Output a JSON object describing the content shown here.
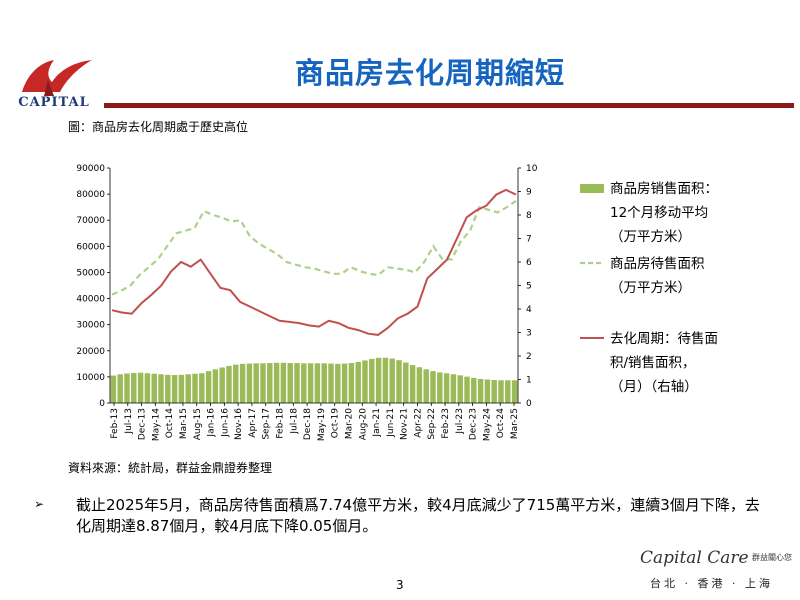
{
  "header": {
    "logo_text": "CAPITAL",
    "title": "商品房去化周期縮短"
  },
  "figure_caption": "圖：商品房去化周期處于歷史高位",
  "source_note": "資料來源：統計局，群益金鼎證券整理",
  "bullet": {
    "marker": "➢",
    "text": "截止2025年5月，商品房待售面積爲7.74億平方米，較4月底減少了715萬平方米，連續3個月下降，去化周期達8.87個月，較4月底下降0.05個月。"
  },
  "footer": {
    "page_number": "3",
    "brand": "Capital Care",
    "brand_cn": "群益關心您",
    "cities": "台北 · 香港 · 上海"
  },
  "colors": {
    "title": "#1565c0",
    "rule": "#8b1a1a",
    "sales_bars": "#9bbb59",
    "inventory_line": "#aed08a",
    "cycle_line": "#c0504d"
  },
  "chart_data": {
    "type": "bar",
    "x_tick_labels": [
      "Feb-13",
      "Jul-13",
      "Dec-13",
      "May-14",
      "Oct-14",
      "Mar-15",
      "Aug-15",
      "Jan-16",
      "Jun-16",
      "Nov-16",
      "Apr-17",
      "Sep-17",
      "Feb-18",
      "Jul-18",
      "Dec-18",
      "May-19",
      "Oct-19",
      "Mar-20",
      "Aug-20",
      "Jan-21",
      "Jun-21",
      "Nov-21",
      "Apr-22",
      "Sep-22",
      "Feb-23",
      "Jul-23",
      "Dec-23",
      "May-24",
      "Oct-24",
      "Mar-25"
    ],
    "y_left": {
      "ticks": [
        "0",
        "10000",
        "20000",
        "30000",
        "40000",
        "50000",
        "60000",
        "70000",
        "80000",
        "90000"
      ],
      "lim": [
        0,
        90000
      ]
    },
    "y_right": {
      "ticks": [
        "0",
        "1",
        "2",
        "3",
        "4",
        "5",
        "6",
        "7",
        "8",
        "9",
        "10"
      ],
      "lim": [
        0,
        10
      ]
    },
    "grid": false,
    "legend_position": "right",
    "months": "Feb-13 to May-25, monthly",
    "series": [
      {
        "name": "商品房销售面积：12个月移动平均（万平方米）",
        "legend_lines": [
          "商品房销售面积：",
          "12个月移动平均",
          "（万平方米）"
        ],
        "kind": "bar",
        "axis": "left",
        "quarterly_values": [
          10500,
          11000,
          11300,
          11500,
          11600,
          11400,
          11200,
          11000,
          10800,
          10700,
          10800,
          11000,
          11200,
          11400,
          12200,
          12900,
          13600,
          14200,
          14700,
          15000,
          15100,
          15200,
          15200,
          15300,
          15400,
          15400,
          15300,
          15300,
          15200,
          15200,
          15200,
          15200,
          15100,
          15000,
          15100,
          15300,
          15700,
          16300,
          16900,
          17300,
          17300,
          17000,
          16400,
          15500,
          14500,
          13700,
          12900,
          12200,
          11700,
          11400,
          11000,
          10600,
          10100,
          9600,
          9200,
          9000,
          8800,
          8700,
          8700,
          8700
        ]
      },
      {
        "name": "商品房待售面积（万平方米）",
        "legend_lines": [
          "商品房待售面积",
          "（万平方米）"
        ],
        "kind": "line",
        "style": "dashed",
        "axis": "left",
        "quarterly_values": [
          41500,
          43000,
          45000,
          49000,
          52000,
          55000,
          60000,
          65000,
          66000,
          67000,
          73500,
          72000,
          71000,
          69500,
          70000,
          64000,
          61000,
          59000,
          57000,
          54000,
          53000,
          52000,
          51500,
          50500,
          49500,
          49500,
          52000,
          50500,
          49500,
          49000,
          52000,
          51500,
          51000,
          50000,
          54000,
          60000,
          55000,
          55000,
          62000,
          66000,
          75000,
          74000,
          73000,
          75000,
          77400
        ]
      },
      {
        "name": "去化周期：待售面积/销售面积，（月）（右轴）",
        "legend_lines": [
          "去化周期：待售面",
          "积/销售面积，",
          "（月）（右轴）"
        ],
        "kind": "line",
        "style": "solid",
        "axis": "right",
        "quarterly_values": [
          3.95,
          3.85,
          3.8,
          4.25,
          4.6,
          5.0,
          5.6,
          6.0,
          5.8,
          6.1,
          5.5,
          4.9,
          4.8,
          4.3,
          4.1,
          3.9,
          3.7,
          3.5,
          3.45,
          3.4,
          3.3,
          3.25,
          3.5,
          3.4,
          3.2,
          3.1,
          2.95,
          2.9,
          3.2,
          3.6,
          3.8,
          4.1,
          5.3,
          5.7,
          6.1,
          7.0,
          7.9,
          8.2,
          8.4,
          8.87,
          9.07,
          8.87
        ]
      }
    ]
  }
}
